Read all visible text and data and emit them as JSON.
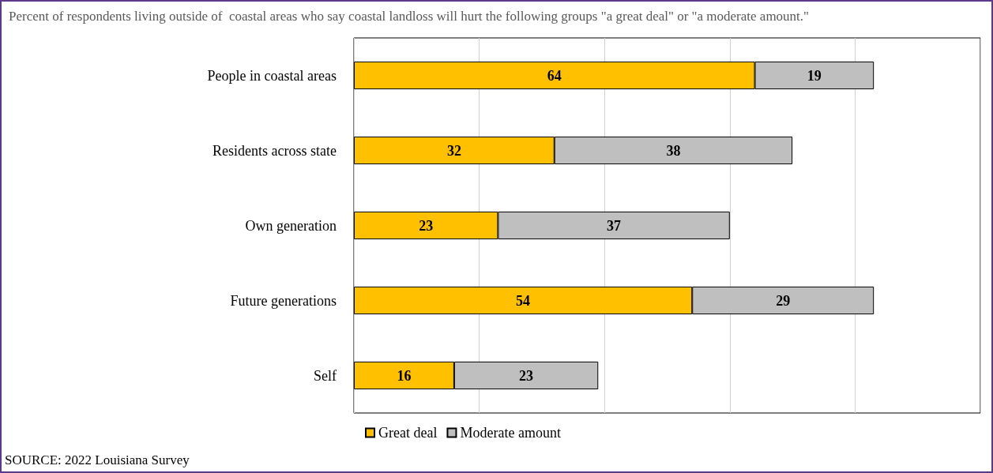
{
  "chart_data": {
    "type": "bar",
    "orientation": "horizontal",
    "stacked": true,
    "title": "Percent of respondents living outside of  coastal areas who say coastal landloss will hurt the following groups \"a great deal\" or \"a moderate amount.\"",
    "categories": [
      "People in coastal areas",
      "Residents across state",
      "Own generation",
      "Future generations",
      "Self"
    ],
    "series": [
      {
        "name": "Great deal",
        "color": "#ffc000",
        "values": [
          64,
          32,
          23,
          54,
          16
        ]
      },
      {
        "name": "Moderate amount",
        "color": "#bfbfbf",
        "values": [
          19,
          38,
          37,
          29,
          23
        ]
      }
    ],
    "xlim": [
      0,
      100
    ],
    "xticks": [
      {
        "value": 0,
        "label": null
      },
      {
        "value": 20,
        "label": null
      },
      {
        "value": 40,
        "label": null
      },
      {
        "value": 60,
        "label": null
      },
      {
        "value": 80,
        "label": null
      },
      {
        "value": 100,
        "label": null
      }
    ],
    "grid": "x",
    "legend": "bottom",
    "tick_labels": "y",
    "data_labels": true,
    "annotations": [
      "SOURCE: 2022 Louisiana Survey"
    ]
  }
}
